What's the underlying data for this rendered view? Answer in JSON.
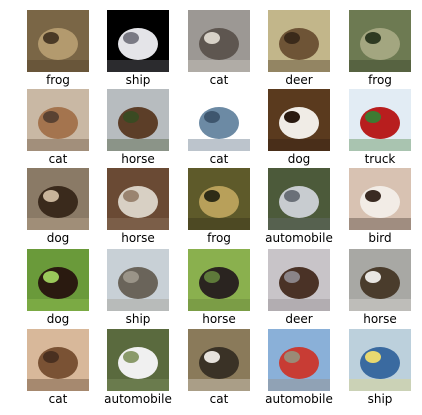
{
  "grid": {
    "rows": 5,
    "cols": 5,
    "items": [
      {
        "label": "frog",
        "colors": [
          "#7a6646",
          "#b39a6e",
          "#4a3a26"
        ]
      },
      {
        "label": "ship",
        "colors": [
          "#000000",
          "#e4e4e8",
          "#7a7a84"
        ]
      },
      {
        "label": "cat",
        "colors": [
          "#9c9894",
          "#5e5650",
          "#d8d2c8"
        ]
      },
      {
        "label": "deer",
        "colors": [
          "#c2b68a",
          "#6e5436",
          "#3b2a1a"
        ]
      },
      {
        "label": "frog",
        "colors": [
          "#6d7a52",
          "#a3a680",
          "#2e3a22"
        ]
      },
      {
        "label": "cat",
        "colors": [
          "#c9b8a4",
          "#a4744e",
          "#5a4232"
        ]
      },
      {
        "label": "horse",
        "colors": [
          "#b7bcbf",
          "#5c3e28",
          "#3a4a22"
        ]
      },
      {
        "label": "cat",
        "colors": [
          "#ffffff",
          "#6c8aa4",
          "#3e566e"
        ]
      },
      {
        "label": "dog",
        "colors": [
          "#5a3a1e",
          "#f0ece6",
          "#2a1a10"
        ]
      },
      {
        "label": "truck",
        "colors": [
          "#e2ecf4",
          "#b81e1e",
          "#3e7a32"
        ]
      },
      {
        "label": "dog",
        "colors": [
          "#8a7a66",
          "#3a2a1c",
          "#c8b49a"
        ]
      },
      {
        "label": "horse",
        "colors": [
          "#6a4a34",
          "#d8d0c4",
          "#9a8470"
        ]
      },
      {
        "label": "frog",
        "colors": [
          "#5e5a2a",
          "#b8a05a",
          "#2e2c16"
        ]
      },
      {
        "label": "automobile",
        "colors": [
          "#4c5a3a",
          "#c8ccd0",
          "#6a7078"
        ]
      },
      {
        "label": "bird",
        "colors": [
          "#d8c2b2",
          "#f2ece6",
          "#3a2a22"
        ]
      },
      {
        "label": "dog",
        "colors": [
          "#6a9a3a",
          "#2a1a10",
          "#9ac85a"
        ]
      },
      {
        "label": "ship",
        "colors": [
          "#c8d0d6",
          "#6a645a",
          "#9a9488"
        ]
      },
      {
        "label": "horse",
        "colors": [
          "#8ab04e",
          "#2a2420",
          "#5e7a3a"
        ]
      },
      {
        "label": "deer",
        "colors": [
          "#c8c4c8",
          "#4a3226",
          "#8a8488"
        ]
      },
      {
        "label": "horse",
        "colors": [
          "#a8a8a4",
          "#4a3c2c",
          "#e8e6e2"
        ]
      },
      {
        "label": "cat",
        "colors": [
          "#d8b89a",
          "#7a5234",
          "#4a3020"
        ]
      },
      {
        "label": "automobile",
        "colors": [
          "#5a6a3e",
          "#f0f0f0",
          "#8a9a6a"
        ]
      },
      {
        "label": "cat",
        "colors": [
          "#8a7a5a",
          "#3a3226",
          "#e6e2dc"
        ]
      },
      {
        "label": "automobile",
        "colors": [
          "#8ab0d8",
          "#c83c34",
          "#9a8a76"
        ]
      },
      {
        "label": "ship",
        "colors": [
          "#bcd0dc",
          "#3a6aa0",
          "#e8d870"
        ]
      }
    ]
  }
}
